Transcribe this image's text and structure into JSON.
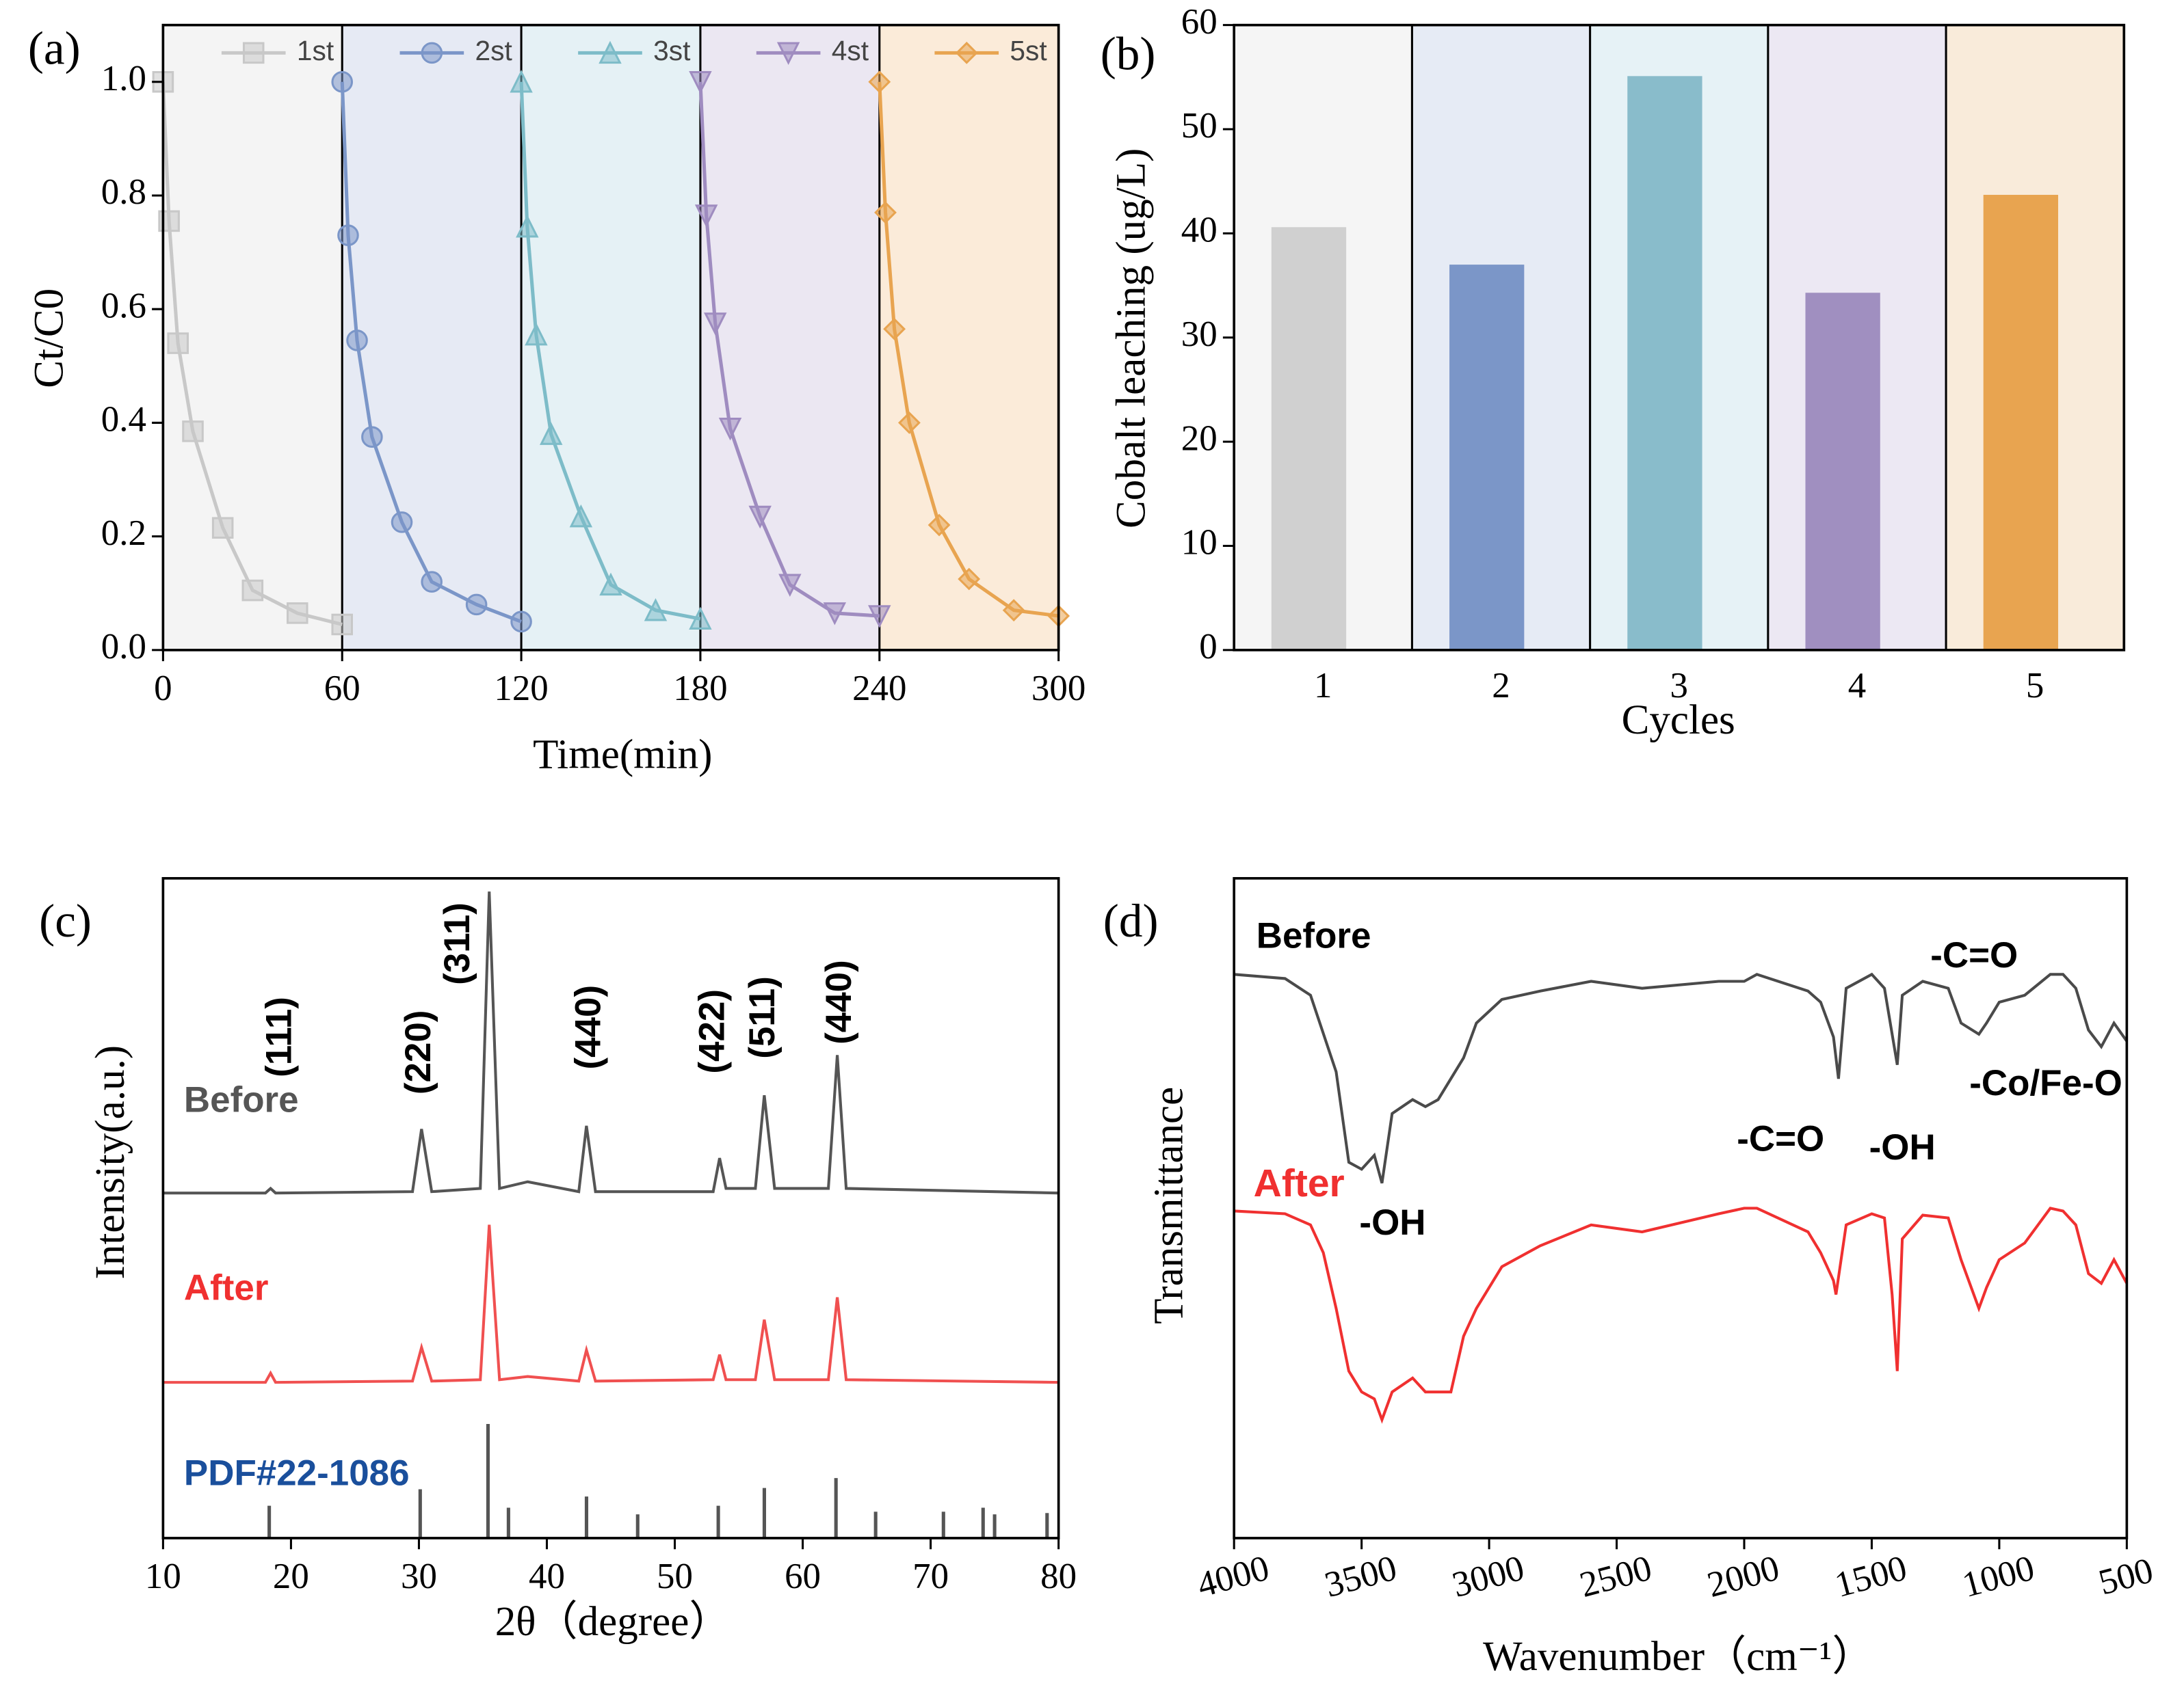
{
  "chart_data": [
    {
      "type": "line",
      "panel": "(a)",
      "x_label": "Time(min)",
      "y_label": "Ct/C0",
      "xlim": [
        0,
        300
      ],
      "xticks": [
        0,
        60,
        120,
        180,
        240,
        300
      ],
      "ylim": [
        0,
        1.1
      ],
      "yticks": [
        {
          "value": 0,
          "label": "0.0"
        },
        0.2,
        0.4,
        0.6,
        0.8,
        {
          "value": 1,
          "label": "1.0"
        }
      ],
      "legend": "top",
      "band_colors": [
        "#f4f4f4",
        "#e6eaf4",
        "#e5f1f5",
        "#ebe7f2",
        "#fbebd9"
      ],
      "series": [
        {
          "name": "1st",
          "color": "#c8c8c8",
          "x": [
            0,
            2,
            5,
            10,
            20,
            30,
            45,
            60
          ],
          "values": [
            1.0,
            0.755,
            0.54,
            0.385,
            0.215,
            0.105,
            0.065,
            0.045
          ]
        },
        {
          "name": "2st",
          "color": "#7b96c8",
          "x": [
            60,
            62,
            65,
            70,
            80,
            90,
            105,
            120
          ],
          "values": [
            1.0,
            0.73,
            0.545,
            0.375,
            0.225,
            0.12,
            0.08,
            0.05
          ]
        },
        {
          "name": "3st",
          "color": "#7dbcc8",
          "x": [
            120,
            122,
            125,
            130,
            140,
            150,
            165,
            180
          ],
          "values": [
            1.0,
            0.745,
            0.555,
            0.38,
            0.235,
            0.115,
            0.07,
            0.055
          ]
        },
        {
          "name": "4st",
          "color": "#9f8cc0",
          "x": [
            180,
            182,
            185,
            190,
            200,
            210,
            225,
            240
          ],
          "values": [
            1.0,
            0.765,
            0.575,
            0.39,
            0.235,
            0.115,
            0.065,
            0.06
          ]
        },
        {
          "name": "5st",
          "color": "#e8a450",
          "x": [
            240,
            242,
            245,
            250,
            260,
            270,
            285,
            300
          ],
          "values": [
            1.0,
            0.77,
            0.565,
            0.4,
            0.22,
            0.125,
            0.07,
            0.06
          ]
        }
      ]
    },
    {
      "type": "bar",
      "panel": "(b)",
      "x_label": "Cycles",
      "y_label": "Cobalt leaching (ug/L)",
      "categories": [
        "1",
        "2",
        "3",
        "4",
        "5"
      ],
      "values": [
        40.6,
        37.0,
        55.1,
        34.3,
        43.7
      ],
      "colors": [
        "#d0d0d0",
        "#7b96c8",
        "#89bccb",
        "#a08fc0",
        "#e8a450"
      ],
      "band_colors": [
        "#f5f5f5",
        "#e6ebf5",
        "#e6f2f6",
        "#ece8f3",
        "#f9ebda"
      ],
      "ylim": [
        0,
        60
      ],
      "yticks": [
        0,
        10,
        20,
        30,
        40,
        50,
        60
      ]
    },
    {
      "type": "line",
      "panel": "(c)",
      "x_label": "2θ（degree）",
      "y_label": "Intensity(a.u.)",
      "xlim": [
        10,
        80
      ],
      "xticks": [
        10,
        20,
        30,
        40,
        50,
        60,
        70,
        80
      ],
      "ylim": [
        0,
        100
      ],
      "annotations": [
        "(111)",
        "(220)",
        "(311)",
        "(440)",
        "(422)",
        "(511)",
        "(440)"
      ],
      "series": [
        {
          "name": "Before",
          "color": "#555555",
          "x": [
            10,
            18,
            18.4,
            18.8,
            29.5,
            30.2,
            31,
            34.8,
            35.5,
            36.3,
            38.5,
            42.5,
            43.1,
            43.8,
            53,
            53.5,
            54,
            56.3,
            57,
            57.8,
            62,
            62.7,
            63.4,
            80
          ],
          "values": [
            52.3,
            52.3,
            53,
            52.3,
            52.5,
            62,
            52.5,
            53,
            98,
            53,
            54,
            52.5,
            62.5,
            52.5,
            52.5,
            57.6,
            53,
            53,
            67.1,
            53,
            53,
            73.2,
            53,
            52.3
          ]
        },
        {
          "name": "After",
          "color": "#f05050",
          "x": [
            10,
            18,
            18.4,
            18.8,
            29.5,
            30.2,
            31,
            34.8,
            35.5,
            36.3,
            38.5,
            42.5,
            43.1,
            43.8,
            53,
            53.5,
            54,
            56.3,
            57,
            57.8,
            62,
            62.7,
            63.4,
            80
          ],
          "values": [
            23.6,
            23.6,
            25,
            23.6,
            23.8,
            28.9,
            23.8,
            24,
            47.5,
            24,
            24.5,
            23.8,
            28.5,
            23.8,
            24,
            27.8,
            24,
            24,
            33.1,
            24,
            24,
            36.5,
            24,
            23.6
          ]
        }
      ],
      "reference": {
        "name": "PDF#22-1086",
        "color": "#555555",
        "x": [
          18.3,
          30.1,
          35.4,
          37.0,
          43.1,
          47.1,
          53.4,
          57.0,
          62.6,
          65.7,
          71.0,
          74.1,
          75.0,
          79.1
        ],
        "values": [
          4.9,
          7.4,
          17.3,
          4.6,
          6.3,
          3.6,
          4.9,
          7.6,
          9.1,
          4,
          4,
          4.6,
          3.6,
          3.8
        ]
      }
    },
    {
      "type": "line",
      "panel": "(d)",
      "x_label": "Wavenumber（cm⁻¹）",
      "y_label": "Transmittance",
      "xlim": [
        4000,
        500
      ],
      "xticks": [
        4000,
        3500,
        3000,
        2500,
        2000,
        1500,
        1000,
        500
      ],
      "ylim": [
        0,
        474
      ],
      "annotations": [
        "-OH",
        "-C=O",
        "-OH",
        "-C=O",
        "-Co/Fe-O"
      ],
      "series": [
        {
          "name": "Before",
          "color": "#4a4a4a",
          "x": [
            4000,
            3800,
            3700,
            3600,
            3550,
            3500,
            3450,
            3420,
            3380,
            3300,
            3250,
            3200,
            3100,
            3050,
            2950,
            2800,
            2600,
            2400,
            2100,
            2000,
            1950,
            1750,
            1700,
            1650,
            1630,
            1600,
            1500,
            1450,
            1400,
            1380,
            1300,
            1200,
            1150,
            1080,
            1050,
            1000,
            900,
            800,
            750,
            700,
            650,
            600,
            550,
            500
          ],
          "values": [
            405,
            402,
            390,
            335,
            270,
            265,
            275,
            255,
            305,
            315,
            310,
            315,
            345,
            370,
            387,
            393,
            400,
            395,
            400,
            400,
            405,
            393,
            385,
            360,
            330,
            395,
            405,
            395,
            340,
            390,
            400,
            395,
            370,
            362,
            370,
            385,
            390,
            405,
            405,
            395,
            365,
            353,
            370,
            357
          ]
        },
        {
          "name": "After",
          "color": "#f03030",
          "x": [
            4000,
            3800,
            3700,
            3650,
            3600,
            3550,
            3500,
            3450,
            3420,
            3380,
            3300,
            3250,
            3150,
            3100,
            3050,
            2950,
            2800,
            2600,
            2400,
            2100,
            2000,
            1950,
            1750,
            1700,
            1650,
            1640,
            1600,
            1500,
            1450,
            1420,
            1400,
            1380,
            1300,
            1200,
            1150,
            1080,
            1050,
            1000,
            900,
            800,
            750,
            700,
            650,
            600,
            550,
            500
          ],
          "values": [
            235,
            233,
            225,
            205,
            165,
            120,
            105,
            100,
            85,
            105,
            115,
            105,
            105,
            145,
            165,
            195,
            210,
            225,
            220,
            233,
            237,
            237,
            220,
            205,
            185,
            175,
            225,
            233,
            230,
            175,
            120,
            215,
            232,
            230,
            200,
            165,
            180,
            200,
            212,
            237,
            235,
            225,
            190,
            183,
            200,
            183
          ]
        }
      ]
    }
  ]
}
